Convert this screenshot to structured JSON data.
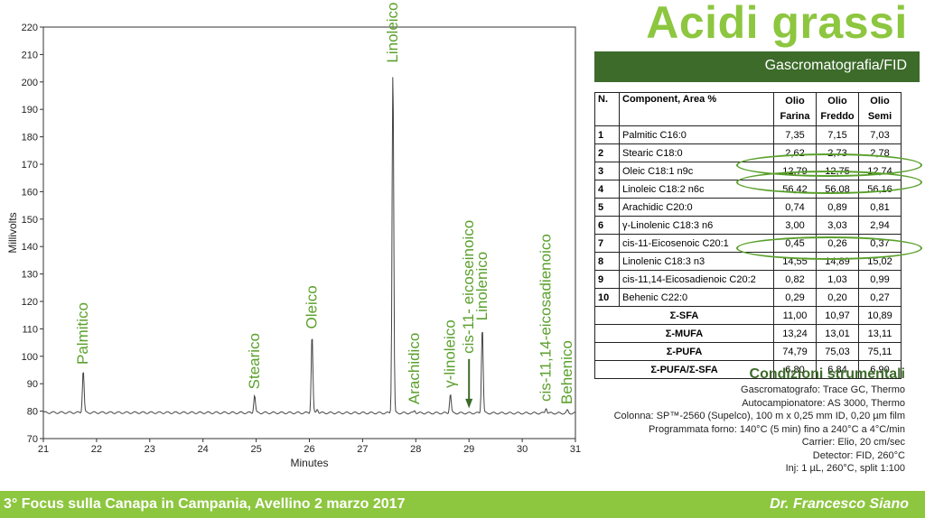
{
  "header": {
    "title": "Acidi grassi",
    "subtitle": "Gascromatografia/FID"
  },
  "chart_data": {
    "type": "line",
    "xlabel": "Minutes",
    "ylabel": "Millivolts",
    "xlim": [
      21,
      31
    ],
    "ylim": [
      70,
      220
    ],
    "xticks": [
      "21",
      "22",
      "23",
      "24",
      "25",
      "26",
      "27",
      "28",
      "29",
      "30",
      "31"
    ],
    "yticks": [
      "70",
      "80",
      "90",
      "100",
      "110",
      "120",
      "130",
      "140",
      "150",
      "160",
      "170",
      "180",
      "190",
      "200",
      "210",
      "220"
    ],
    "baseline": 79.5,
    "line_color": "#444444",
    "label_color": "#5aa02c",
    "peaks": [
      {
        "name": "Palmitico",
        "x": 21.75,
        "y": 95
      },
      {
        "name": "Stearico",
        "x": 24.97,
        "y": 86
      },
      {
        "name": "Oleico",
        "x": 26.05,
        "y": 108
      },
      {
        "name": "",
        "x": 26.15,
        "y": 81
      },
      {
        "name": "Linoleico",
        "x": 27.57,
        "y": 205
      },
      {
        "name": "Arachidico",
        "x": 27.98,
        "y": 80.5
      },
      {
        "name": "γ-linoleico",
        "x": 28.65,
        "y": 86.5
      },
      {
        "name": "Linolenico",
        "x": 29.25,
        "y": 111
      },
      {
        "name": "cis-11,14-eicosadienoico",
        "x": 30.45,
        "y": 81.5
      },
      {
        "name": "Behenico",
        "x": 30.85,
        "y": 80.5
      }
    ],
    "arrow_label": "cis-11- eicoseinoico",
    "arrow_x": 29.0,
    "arrow_y": 99
  },
  "table": {
    "headers": [
      "N.",
      "Component, Area %",
      "Olio Farina",
      "Olio Freddo",
      "Olio Semi"
    ],
    "rows": [
      {
        "n": "1",
        "name": "Palmitic C16:0",
        "v": [
          "7,35",
          "7,15",
          "7,03"
        ]
      },
      {
        "n": "2",
        "name": "Stearic C18:0",
        "v": [
          "2,62",
          "2,73",
          "2,78"
        ]
      },
      {
        "n": "3",
        "name": "Oleic C18:1 n9c",
        "v": [
          "12,79",
          "12,75",
          "12,74"
        ]
      },
      {
        "n": "4",
        "name": "Linoleic C18:2 n6c",
        "v": [
          "56,42",
          "56,08",
          "56,16"
        ]
      },
      {
        "n": "5",
        "name": "Arachidic C20:0",
        "v": [
          "0,74",
          "0,89",
          "0,81"
        ]
      },
      {
        "n": "6",
        "name": "γ-Linolenic C18:3 n6",
        "v": [
          "3,00",
          "3,03",
          "2,94"
        ]
      },
      {
        "n": "7",
        "name": "cis-11-Eicosenoic C20:1",
        "v": [
          "0,45",
          "0,26",
          "0,37"
        ]
      },
      {
        "n": "8",
        "name": "Linolenic C18:3 n3",
        "v": [
          "14,55",
          "14,89",
          "15,02"
        ]
      },
      {
        "n": "9",
        "name": "cis-11,14-Eicosadienoic C20:2",
        "v": [
          "0,82",
          "1,03",
          "0,99"
        ]
      },
      {
        "n": "10",
        "name": "Behenic C22:0",
        "v": [
          "0,29",
          "0,20",
          "0,27"
        ]
      }
    ],
    "sums": [
      {
        "name": "Σ-SFA",
        "v": [
          "11,00",
          "10,97",
          "10,89"
        ]
      },
      {
        "name": "Σ-MUFA",
        "v": [
          "13,24",
          "13,01",
          "13,11"
        ]
      },
      {
        "name": "Σ-PUFA",
        "v": [
          "74,79",
          "75,03",
          "75,11"
        ]
      },
      {
        "name": "Σ-PUFA/Σ-SFA",
        "v": [
          "6,80",
          "6,84",
          "6,90"
        ]
      }
    ]
  },
  "conditions": {
    "title": "Condizioni strumentali",
    "lines": [
      "Gascromatografo: Trace GC, Thermo",
      "Autocampionatore: AS 3000, Thermo",
      "Colonna: SP™-2560 (Supelco), 100 m x 0,25 mm ID, 0,20 µm film",
      "Programmata forno: 140°C (5 min) fino a 240°C a 4°C/min",
      "Carrier: Elio, 20 cm/sec",
      "Detector: FID, 260°C",
      "Inj: 1 µL, 260°C, split 1:100"
    ]
  },
  "footer": {
    "left": "3° Focus sulla Canapa in Campania, Avellino 2 marzo 2017",
    "right": "Dr. Francesco Siano"
  },
  "colors": {
    "accent": "#8dc63f",
    "dark_green": "#3d6b2a"
  }
}
